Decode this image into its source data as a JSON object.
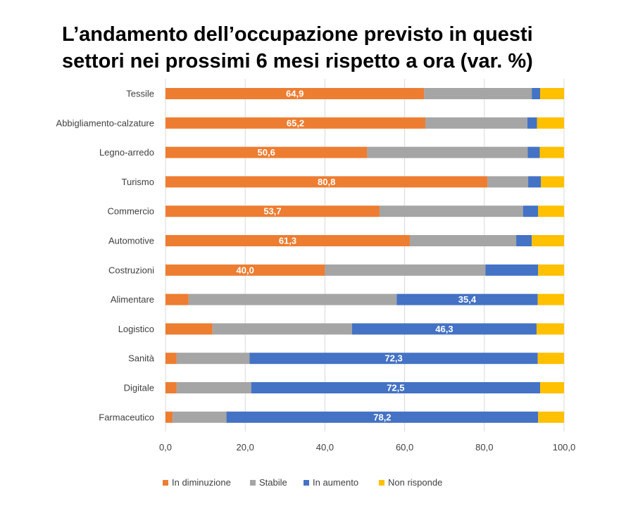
{
  "chart_data": {
    "type": "bar",
    "orientation": "horizontal",
    "stacked": true,
    "title_lines": [
      "L’andamento dell’occupazione previsto in questi",
      "settori nei prossimi 6 mesi rispetto a ora (var. %)"
    ],
    "categories": [
      "Tessile",
      "Abbigliamento-calzature",
      "Legno-arredo",
      "Turismo",
      "Commercio",
      "Automotive",
      "Costruzioni",
      "Alimentare",
      "Logistico",
      "Sanità",
      "Digitale",
      "Farmaceutico"
    ],
    "series": [
      {
        "name": "In diminuzione",
        "color": "#ED7D31",
        "values": [
          64.9,
          65.2,
          50.6,
          80.8,
          53.7,
          61.3,
          40.0,
          5.8,
          11.8,
          2.8,
          2.8,
          1.8
        ]
      },
      {
        "name": "Stabile",
        "color": "#A5A5A5",
        "values": [
          27.0,
          25.6,
          40.3,
          10.2,
          36.0,
          26.7,
          40.3,
          52.2,
          35.0,
          18.3,
          18.7,
          13.5
        ]
      },
      {
        "name": "In aumento",
        "color": "#4472C4",
        "values": [
          2.1,
          2.4,
          3.0,
          3.2,
          3.8,
          3.9,
          13.2,
          35.4,
          46.3,
          72.3,
          72.5,
          78.2
        ]
      },
      {
        "name": "Non risponde",
        "color": "#FFC000",
        "values": [
          6.0,
          6.8,
          6.1,
          5.8,
          6.5,
          8.1,
          6.5,
          6.6,
          6.9,
          6.6,
          6.0,
          6.5
        ]
      }
    ],
    "data_labels": [
      {
        "category": "Tessile",
        "series": "In diminuzione",
        "text": "64,9"
      },
      {
        "category": "Abbigliamento-calzature",
        "series": "In diminuzione",
        "text": "65,2"
      },
      {
        "category": "Legno-arredo",
        "series": "In diminuzione",
        "text": "50,6"
      },
      {
        "category": "Turismo",
        "series": "In diminuzione",
        "text": "80,8"
      },
      {
        "category": "Commercio",
        "series": "In diminuzione",
        "text": "53,7"
      },
      {
        "category": "Automotive",
        "series": "In diminuzione",
        "text": "61,3"
      },
      {
        "category": "Costruzioni",
        "series": "In diminuzione",
        "text": "40,0"
      },
      {
        "category": "Alimentare",
        "series": "In aumento",
        "text": "35,4"
      },
      {
        "category": "Logistico",
        "series": "In aumento",
        "text": "46,3"
      },
      {
        "category": "Sanità",
        "series": "In aumento",
        "text": "72,3"
      },
      {
        "category": "Digitale",
        "series": "In aumento",
        "text": "72,5"
      },
      {
        "category": "Farmaceutico",
        "series": "In aumento",
        "text": "78,2"
      }
    ],
    "xlim": [
      0,
      100
    ],
    "x_ticks": [
      0,
      20,
      40,
      60,
      80,
      100
    ],
    "x_tick_labels": [
      "0,0",
      "20,0",
      "40,0",
      "60,0",
      "80,0",
      "100,0"
    ],
    "grid": "vertical",
    "legend_position": "bottom",
    "xlabel": "",
    "ylabel": ""
  }
}
